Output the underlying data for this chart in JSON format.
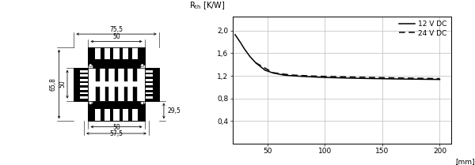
{
  "fig_width": 6.0,
  "fig_height": 2.09,
  "dpi": 100,
  "bg_color": "#ffffff",
  "graph_xlim": [
    20,
    210
  ],
  "graph_ylim": [
    0.0,
    2.25
  ],
  "graph_xticks": [
    50,
    100,
    150,
    200
  ],
  "graph_yticks": [
    0.4,
    0.8,
    1.2,
    1.6,
    2.0
  ],
  "graph_ytick_labels": [
    "0,4",
    "0,8",
    "1,2",
    "1,6",
    "2,0"
  ],
  "graph_xtick_labels": [
    "50",
    "100",
    "150",
    "200"
  ],
  "curve_12V_x": [
    22,
    24,
    27,
    30,
    35,
    40,
    48,
    55,
    65,
    80,
    100,
    130,
    160,
    200
  ],
  "curve_12V_y": [
    1.93,
    1.87,
    1.78,
    1.68,
    1.54,
    1.43,
    1.3,
    1.25,
    1.21,
    1.19,
    1.17,
    1.155,
    1.145,
    1.135
  ],
  "curve_24V_x": [
    40,
    55,
    70,
    90,
    110,
    140,
    170,
    200
  ],
  "curve_24V_y": [
    1.43,
    1.255,
    1.215,
    1.195,
    1.185,
    1.17,
    1.16,
    1.15
  ],
  "legend_12V": "12 V DC",
  "legend_24V": "24 V DC",
  "dim_75_5": "75,5",
  "dim_50_top": "50",
  "dim_65_8": "65,8",
  "dim_50_left": "50",
  "dim_29_5": "29,5",
  "dim_50_bot": "50",
  "dim_57_5": "57,5"
}
